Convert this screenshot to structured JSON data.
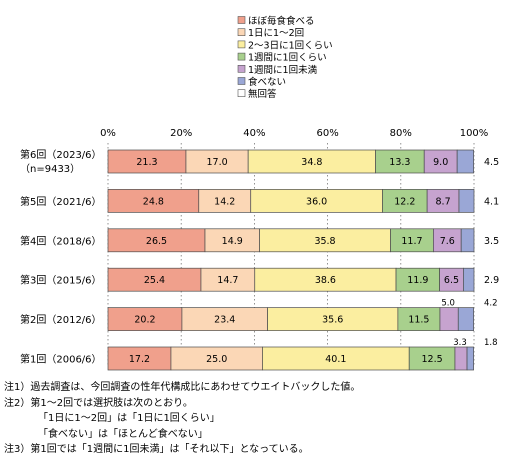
{
  "chart_data": {
    "type": "bar",
    "orientation": "horizontal",
    "stacked": true,
    "percent": true,
    "xlim": [
      0,
      100
    ],
    "x_ticks": [
      "0%",
      "20%",
      "40%",
      "60%",
      "80%",
      "100%"
    ],
    "legend_position": "top",
    "categories": [
      [
        "第6回（2023/6）",
        "（n=9433）"
      ],
      [
        "第5回（2021/6）"
      ],
      [
        "第4回（2018/6）"
      ],
      [
        "第3回（2015/6）"
      ],
      [
        "第2回（2012/6）"
      ],
      [
        "第1回（2006/6）"
      ]
    ],
    "series": [
      {
        "name": "ほぼ毎食食べる",
        "color": "#f0a08c",
        "values": [
          21.3,
          24.8,
          26.5,
          25.4,
          20.2,
          17.2
        ]
      },
      {
        "name": "1日に1～2回",
        "color": "#fbd7b6",
        "values": [
          17.0,
          14.2,
          14.9,
          14.7,
          23.4,
          25.0
        ]
      },
      {
        "name": "2～3日に1回くらい",
        "color": "#fbeea0",
        "values": [
          34.8,
          36.0,
          35.8,
          38.6,
          35.6,
          40.1
        ]
      },
      {
        "name": "1週間に1回くらい",
        "color": "#a8d08d",
        "values": [
          13.3,
          12.2,
          11.7,
          11.9,
          11.5,
          12.5
        ]
      },
      {
        "name": "1週間に1回未満",
        "color": "#c6a3cf",
        "values": [
          9.0,
          8.7,
          7.6,
          6.5,
          5.0,
          3.3
        ]
      },
      {
        "name": "食べない",
        "color": "#9aa7d6",
        "values": [
          4.5,
          4.1,
          3.5,
          2.9,
          4.2,
          1.8
        ]
      },
      {
        "name": "無回答",
        "color": "#ffffff",
        "values": [
          null,
          null,
          null,
          null,
          null,
          null
        ]
      }
    ]
  },
  "notes": [
    "注1）過去調査は、今回調査の性年代構成比にあわせてウエイトバックした値。",
    "注2）第1～2回では選択肢は次のとおり。",
    "「1日に1～2回」は「1日に1回くらい」",
    "「食べない」は「ほとんど食べない」",
    "注3）第1回では「1週間に1回未満」は「それ以下」となっている。"
  ]
}
